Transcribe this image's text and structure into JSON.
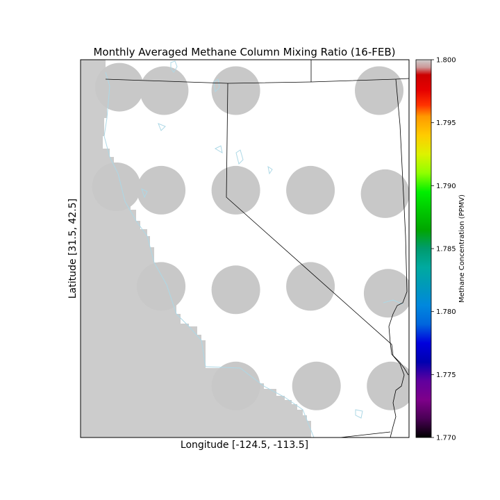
{
  "chart_data": {
    "type": "heatmap",
    "title": "Monthly Averaged Methane Column Mixing Ratio (16-FEB)",
    "xlabel": "Longitude [-124.5, -113.5]",
    "ylabel": "Latitude [31.5, 42.5]",
    "xlim": [
      -124.5,
      -113.5
    ],
    "ylim": [
      31.5,
      42.5
    ],
    "colorbar": {
      "label": "Methane Concentration (PPMV)",
      "range": [
        1.77,
        1.8
      ],
      "ticks": [
        "1.770",
        "1.775",
        "1.780",
        "1.785",
        "1.790",
        "1.795",
        "1.800"
      ],
      "colormap": "nipy_spectral"
    },
    "land_color": "#ffffff",
    "ocean_mask_color": "#cccccc",
    "coastline_color": "#add8e6",
    "border_color": "#000000",
    "no_data_color": "#c8c8c8",
    "footprints": [
      {
        "lon": -123.2,
        "lat": 41.7
      },
      {
        "lon": -121.7,
        "lat": 41.6
      },
      {
        "lon": -119.3,
        "lat": 41.6
      },
      {
        "lon": -114.5,
        "lat": 41.6
      },
      {
        "lon": -123.3,
        "lat": 38.8
      },
      {
        "lon": -121.8,
        "lat": 38.7
      },
      {
        "lon": -119.3,
        "lat": 38.7
      },
      {
        "lon": -116.8,
        "lat": 38.7
      },
      {
        "lon": -114.3,
        "lat": 38.6
      },
      {
        "lon": -121.8,
        "lat": 35.9
      },
      {
        "lon": -119.3,
        "lat": 35.8
      },
      {
        "lon": -116.8,
        "lat": 35.9
      },
      {
        "lon": -114.2,
        "lat": 35.7
      },
      {
        "lon": -119.3,
        "lat": 33.0
      },
      {
        "lon": -116.6,
        "lat": 33.0
      },
      {
        "lon": -114.1,
        "lat": 33.0
      }
    ]
  }
}
